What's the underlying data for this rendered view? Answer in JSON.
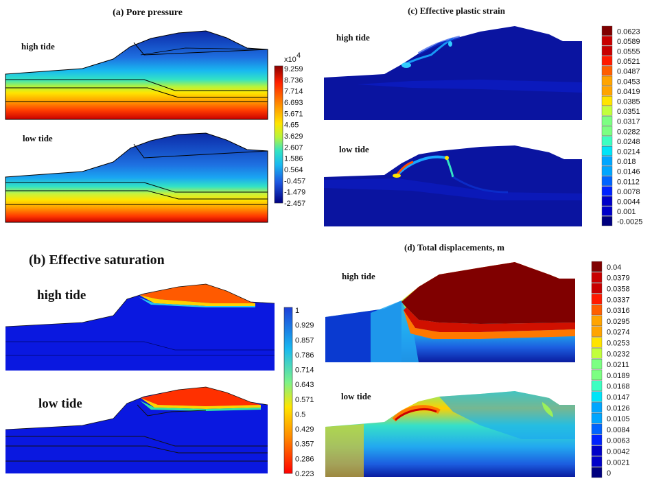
{
  "panels": {
    "a": {
      "title": "(a) Pore pressure",
      "upper_label": "high tide",
      "lower_label": "low tide",
      "scale_exponent": "x10",
      "scale_power": "4",
      "legend_values": [
        "9.259",
        "8.736",
        "7.714",
        "6.693",
        "5.671",
        "4.65",
        "3.629",
        "2.607",
        "1.586",
        "0.564",
        "-0.457",
        "-1.479",
        "-2.457"
      ]
    },
    "b": {
      "title": "(b) Effective saturation",
      "upper_label": "high tide",
      "lower_label": "low tide",
      "legend_values": [
        "1",
        "0.929",
        "0.857",
        "0.786",
        "0.714",
        "0.643",
        "0.571",
        "0.5",
        "0.429",
        "0.357",
        "0.286",
        "0.223"
      ]
    },
    "c": {
      "title": "(c) Effective plastic strain",
      "upper_label": "high tide",
      "lower_label": "low tide",
      "legend_values": [
        "0.0623",
        "0.0589",
        "0.0555",
        "0.0521",
        "0.0487",
        "0.0453",
        "0.0419",
        "0.0385",
        "0.0351",
        "0.0317",
        "0.0282",
        "0.0248",
        "0.0214",
        "0.018",
        "0.0146",
        "0.0112",
        "0.0078",
        "0.0044",
        "0.001",
        "-0.0025"
      ]
    },
    "d": {
      "title": "(d) Total displacements, m",
      "upper_label": "high tide",
      "lower_label": "low tide",
      "legend_values": [
        "0.04",
        "0.0379",
        "0.0358",
        "0.0337",
        "0.0316",
        "0.0295",
        "0.0274",
        "0.0253",
        "0.0232",
        "0.0211",
        "0.0189",
        "0.0168",
        "0.0147",
        "0.0126",
        "0.0105",
        "0.0084",
        "0.0063",
        "0.0042",
        "0.0021",
        "0"
      ]
    }
  },
  "colors": {
    "jet": [
      "#00007f",
      "#0000c8",
      "#0022ff",
      "#0064ff",
      "#00a6ff",
      "#00e4f8",
      "#3cffc2",
      "#7cff82",
      "#c2ff3c",
      "#ffe400",
      "#ffa400",
      "#ff5e00",
      "#ff1a00",
      "#c80000",
      "#800000"
    ],
    "deep_blue": "#000099",
    "outline": "#000000"
  }
}
